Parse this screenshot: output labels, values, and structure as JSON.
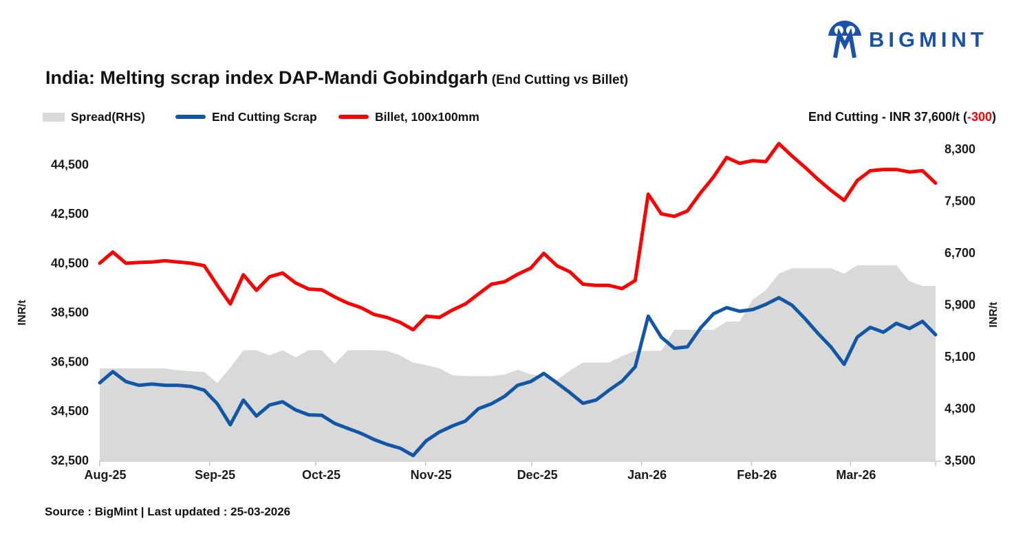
{
  "logo": {
    "text": "BIGMINT",
    "color": "#1b51a8"
  },
  "title": {
    "main": "India: Melting scrap index DAP-Mandi Gobindgarh",
    "sub": " (End Cutting vs Billet)"
  },
  "legend": [
    {
      "label": "Spread(RHS)",
      "swatch": "area",
      "color": "#d9d9d9"
    },
    {
      "label": "End Cutting Scrap",
      "swatch": "line",
      "color": "#1257a5"
    },
    {
      "label": "Billet, 100x100mm",
      "swatch": "line",
      "color": "#fe0000"
    }
  ],
  "annotation": {
    "prefix": "End Cutting - INR 37,600/t (",
    "delta": "-300",
    "suffix": ")",
    "delta_color": "#fe0000"
  },
  "source": "Source : BigMint | Last updated : 25-03-2026",
  "chart_data": {
    "type": "line",
    "title": "India: Melting scrap index DAP-Mandi Gobindgarh (End Cutting vs Billet)",
    "grid": false,
    "legend_position": "top-left",
    "x_dates": [
      "01-Aug",
      "05-Aug",
      "08-Aug",
      "12-Aug",
      "16-Aug",
      "19-Aug",
      "23-Aug",
      "27-Aug",
      "30-Aug",
      "03-Sep",
      "07-Sep",
      "10-Sep",
      "14-Sep",
      "18-Sep",
      "22-Sep",
      "25-Sep",
      "29-Sep",
      "03-Oct",
      "06-Oct",
      "10-Oct",
      "14-Oct",
      "17-Oct",
      "21-Oct",
      "25-Oct",
      "28-Oct",
      "01-Nov",
      "05-Nov",
      "08-Nov",
      "12-Nov",
      "16-Nov",
      "20-Nov",
      "23-Nov",
      "27-Nov",
      "01-Dec",
      "04-Dec",
      "08-Dec",
      "12-Dec",
      "15-Dec",
      "19-Dec",
      "23-Dec",
      "26-Dec",
      "30-Dec",
      "03-Jan",
      "07-Jan",
      "10-Jan",
      "14-Jan",
      "18-Jan",
      "21-Jan",
      "25-Jan",
      "29-Jan",
      "01-Feb",
      "05-Feb",
      "09-Feb",
      "12-Feb",
      "16-Feb",
      "20-Feb",
      "24-Feb",
      "27-Feb",
      "03-Mar",
      "06-Mar",
      "10-Mar",
      "14-Mar",
      "17-Mar",
      "21-Mar",
      "25-Mar"
    ],
    "series": [
      {
        "name": "Spread(RHS)",
        "type": "area",
        "axis": "right",
        "color": "#d9d9d9",
        "values": [
          4920,
          4920,
          4920,
          4920,
          4920,
          4920,
          4890,
          4875,
          4865,
          4695,
          4930,
          5200,
          5200,
          5120,
          5200,
          5090,
          5200,
          5200,
          4990,
          5200,
          5200,
          5200,
          5190,
          5120,
          5010,
          4970,
          4920,
          4815,
          4800,
          4800,
          4800,
          4825,
          4900,
          4825,
          4800,
          4740,
          4885,
          5010,
          5010,
          5010,
          5110,
          5190,
          5190,
          5190,
          5515,
          5515,
          5515,
          5515,
          5640,
          5645,
          5980,
          6125,
          6380,
          6465,
          6465,
          6465,
          6465,
          6380,
          6510,
          6510,
          6510,
          6510,
          6265,
          6190,
          6190
        ]
      },
      {
        "name": "End Cutting Scrap",
        "type": "line",
        "axis": "left",
        "color": "#1257a5",
        "values": [
          35650,
          36100,
          35700,
          35550,
          35600,
          35550,
          35550,
          35500,
          35350,
          34800,
          33950,
          34950,
          34300,
          34750,
          34880,
          34550,
          34350,
          34330,
          34000,
          33800,
          33600,
          33350,
          33150,
          33000,
          32700,
          33300,
          33650,
          33900,
          34100,
          34600,
          34800,
          35100,
          35550,
          35700,
          36030,
          35650,
          35250,
          34820,
          34950,
          35350,
          35720,
          36300,
          38350,
          37500,
          37050,
          37110,
          37870,
          38450,
          38700,
          38550,
          38620,
          38830,
          39100,
          38800,
          38250,
          37650,
          37100,
          36400,
          37500,
          37900,
          37700,
          38060,
          37850,
          38140,
          37600
        ]
      },
      {
        "name": "Billet, 100x100mm",
        "type": "line",
        "axis": "left",
        "color": "#fe0000",
        "values": [
          40500,
          40950,
          40500,
          40530,
          40550,
          40600,
          40550,
          40500,
          40400,
          39600,
          38850,
          40030,
          39400,
          39950,
          40100,
          39700,
          39450,
          39420,
          39130,
          38880,
          38700,
          38420,
          38300,
          38100,
          37800,
          38350,
          38300,
          38600,
          38850,
          39250,
          39650,
          39750,
          40050,
          40300,
          40900,
          40400,
          40150,
          39650,
          39600,
          39600,
          39470,
          39800,
          43300,
          42500,
          42400,
          42620,
          43350,
          44000,
          44790,
          44550,
          44660,
          44620,
          45350,
          44850,
          44390,
          43900,
          43450,
          43050,
          43850,
          44250,
          44300,
          44300,
          44200,
          44250,
          43750
        ]
      }
    ],
    "axes": {
      "left": {
        "label": "INR/t",
        "range": [
          32500,
          45600
        ],
        "ticks": [
          {
            "v": 32500,
            "label": "32,500"
          },
          {
            "v": 34500,
            "label": "34,500"
          },
          {
            "v": 36500,
            "label": "36,500"
          },
          {
            "v": 38500,
            "label": "38,500"
          },
          {
            "v": 40500,
            "label": "40,500"
          },
          {
            "v": 42500,
            "label": "42,500"
          },
          {
            "v": 44500,
            "label": "44,500"
          }
        ]
      },
      "right": {
        "label": "INR/t",
        "range": [
          3500,
          8480
        ],
        "ticks": [
          {
            "v": 3500,
            "label": "3,500"
          },
          {
            "v": 4300,
            "label": "4,300"
          },
          {
            "v": 5100,
            "label": "5,100"
          },
          {
            "v": 5900,
            "label": "5,900"
          },
          {
            "v": 6700,
            "label": "6,700"
          },
          {
            "v": 7500,
            "label": "7,500"
          },
          {
            "v": 8300,
            "label": "8,300"
          }
        ]
      },
      "x": {
        "total_days": 236,
        "tick_days": [
          0,
          31,
          61,
          92,
          122,
          153,
          184,
          212,
          236
        ],
        "labels": [
          "Aug-25",
          "Sep-25",
          "Oct-25",
          "Nov-25",
          "Dec-25",
          "Jan-26",
          "Feb-26",
          "Mar-26"
        ]
      }
    }
  }
}
